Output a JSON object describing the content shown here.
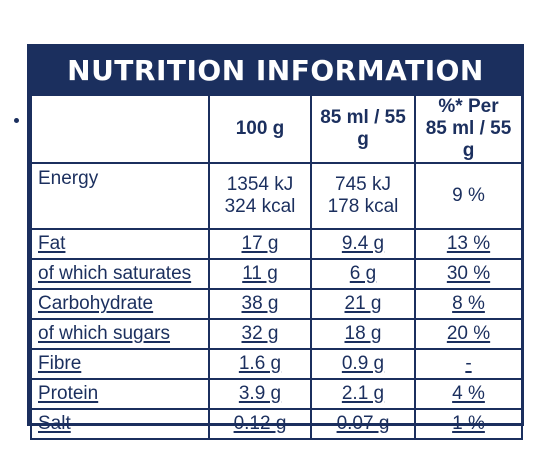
{
  "title": "NUTRITION INFORMATION",
  "columns": {
    "per_100g": "100 g",
    "per_serving": "85 ml / 55 g",
    "ri_line1": "%* Per",
    "ri_line2": "85 ml / 55 g"
  },
  "energy": {
    "label": "Energy",
    "per_100g_kj": "1354 kJ",
    "per_100g_kcal": "324 kcal",
    "per_serving_kj": "745 kJ",
    "per_serving_kcal": "178 kcal",
    "ri": "9 %"
  },
  "rows": [
    {
      "label": "Fat",
      "per_100g": "17 g",
      "per_serving": "9.4 g",
      "ri": "13 %"
    },
    {
      "label": "of which saturates",
      "per_100g": "11 g",
      "per_serving": "6 g",
      "ri": "30 %"
    },
    {
      "label": "Carbohydrate",
      "per_100g": "38 g",
      "per_serving": "21 g",
      "ri": "8 %"
    },
    {
      "label": "of which sugars",
      "per_100g": "32 g",
      "per_serving": "18 g",
      "ri": "20 %"
    },
    {
      "label": "Fibre",
      "per_100g": "1.6 g",
      "per_serving": "0.9 g",
      "ri": "-"
    },
    {
      "label": "Protein",
      "per_100g": "3.9 g",
      "per_serving": "2.1 g",
      "ri": "4 %"
    },
    {
      "label": "Salt",
      "per_100g": "0.12 g",
      "per_serving": "0.07 g",
      "ri": "1 %"
    }
  ],
  "colors": {
    "navy": "#1b2f5e",
    "background": "#ffffff"
  }
}
